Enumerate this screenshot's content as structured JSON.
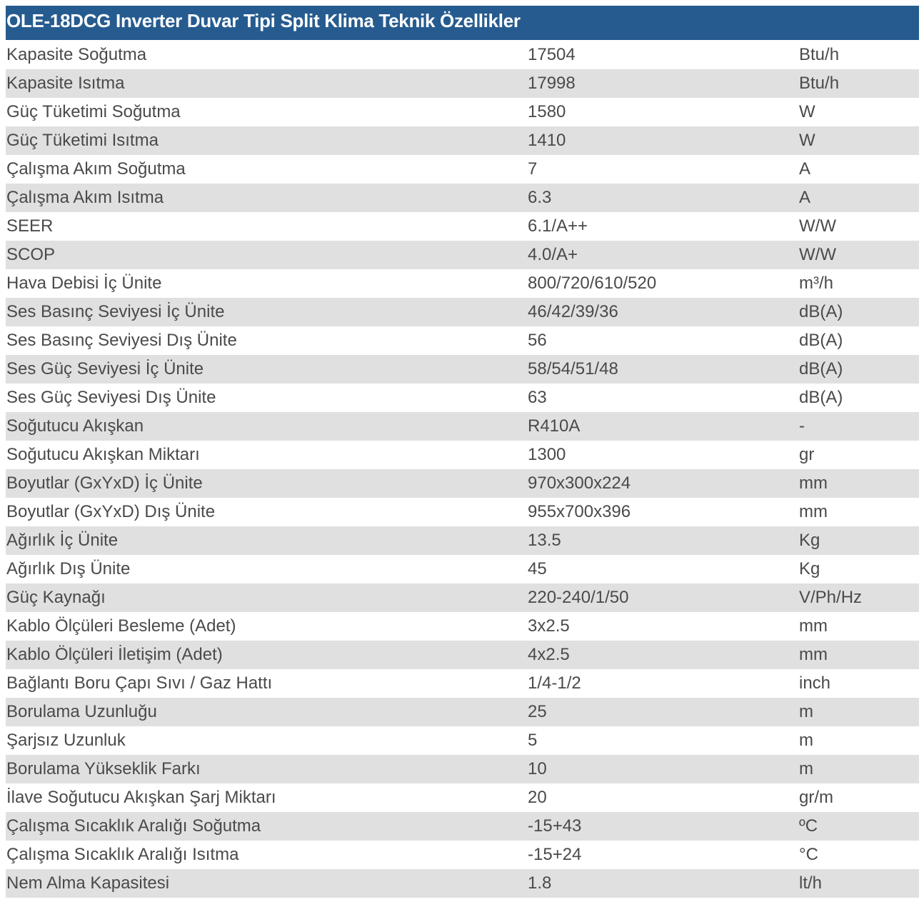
{
  "table": {
    "title": "OLE-18DCG Inverter Duvar Tipi Split Klima Teknik Özellikler",
    "rows": [
      [
        "Kapasite Soğutma",
        "17504",
        "Btu/h"
      ],
      [
        "Kapasite Isıtma",
        "17998",
        "Btu/h"
      ],
      [
        "Güç Tüketimi Soğutma",
        "1580",
        "W"
      ],
      [
        "Güç Tüketimi Isıtma",
        "1410",
        "W"
      ],
      [
        "Çalışma Akım Soğutma",
        "7",
        "A"
      ],
      [
        "Çalışma Akım Isıtma",
        "6.3",
        "A"
      ],
      [
        "SEER",
        "6.1/A++",
        "W/W"
      ],
      [
        "SCOP",
        "4.0/A+",
        "W/W"
      ],
      [
        "Hava Debisi İç Ünite",
        "800/720/610/520",
        "m³/h"
      ],
      [
        "Ses Basınç Seviyesi İç Ünite",
        "46/42/39/36",
        "dB(A)"
      ],
      [
        "Ses Basınç Seviyesi Dış Ünite",
        "56",
        "dB(A)"
      ],
      [
        "Ses Güç Seviyesi İç Ünite",
        "58/54/51/48",
        "dB(A)"
      ],
      [
        "Ses Güç Seviyesi Dış Ünite",
        "63",
        "dB(A)"
      ],
      [
        "Soğutucu Akışkan",
        "R410A",
        "-"
      ],
      [
        "Soğutucu Akışkan Miktarı",
        "1300",
        "gr"
      ],
      [
        "Boyutlar (GxYxD) İç Ünite",
        "970x300x224",
        "mm"
      ],
      [
        "Boyutlar (GxYxD) Dış Ünite",
        "955x700x396",
        "mm"
      ],
      [
        "Ağırlık İç Ünite",
        "13.5",
        "Kg"
      ],
      [
        "Ağırlık Dış Ünite",
        "45",
        "Kg"
      ],
      [
        "Güç Kaynağı",
        "220-240/1/50",
        "V/Ph/Hz"
      ],
      [
        "Kablo Ölçüleri Besleme (Adet)",
        "3x2.5",
        "mm"
      ],
      [
        "Kablo Ölçüleri İletişim (Adet)",
        "4x2.5",
        "mm"
      ],
      [
        "Bağlantı Boru Çapı Sıvı / Gaz Hattı",
        "1/4-1/2",
        "inch"
      ],
      [
        "Borulama Uzunluğu",
        "25",
        "m"
      ],
      [
        "Şarjsız Uzunluk",
        "5",
        "m"
      ],
      [
        "Borulama Yükseklik Farkı",
        "10",
        "m"
      ],
      [
        "İlave Soğutucu Akışkan Şarj Miktarı",
        "20",
        "gr/m"
      ],
      [
        "Çalışma Sıcaklık Aralığı Soğutma",
        "-15+43",
        "ºC"
      ],
      [
        "Çalışma Sıcaklık Aralığı Isıtma",
        "-15+24",
        "°C"
      ],
      [
        "Nem Alma Kapasitesi",
        "1.8",
        "lt/h"
      ]
    ]
  }
}
